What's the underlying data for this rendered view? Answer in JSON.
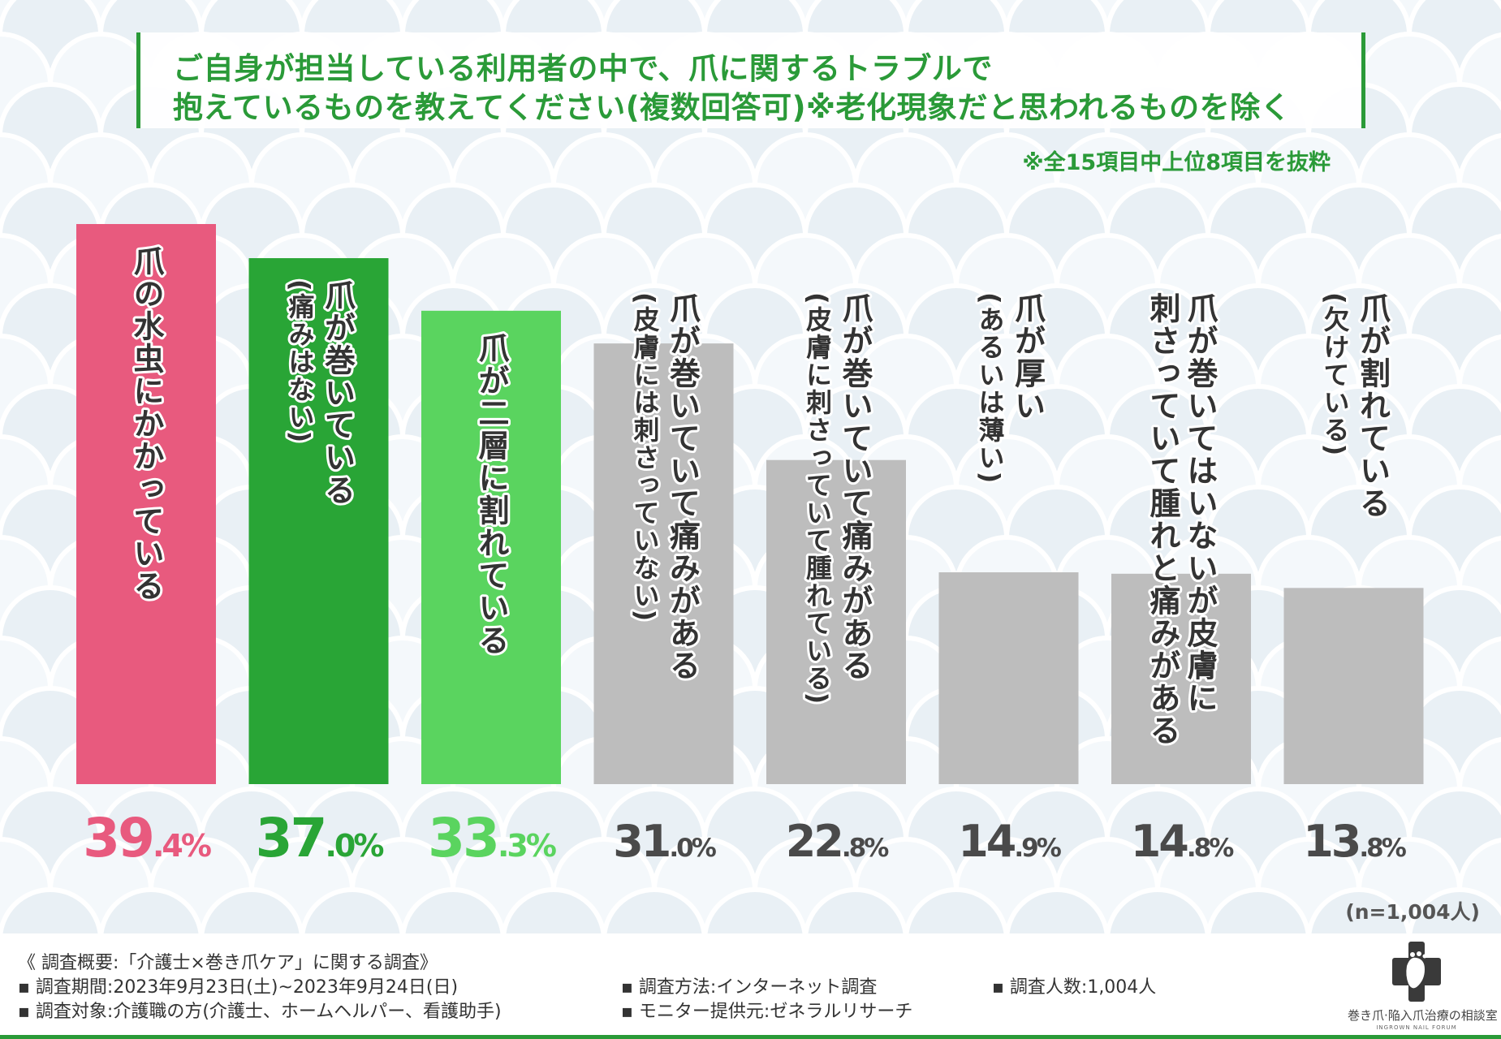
{
  "title": {
    "line1": "ご自身が担当している利用者の中で、爪に関するトラブルで",
    "line2": "抱えているものを教えてください(複数回答可)※老化現象だと思われるものを除く"
  },
  "note": "※全15項目中上位8項目を抜粋",
  "sample_size": "(n=1,004人)",
  "colors": {
    "accent": "#2a9a38",
    "pink": "#e85a7e",
    "green_dark": "#29a536",
    "green_light": "#5ad45f",
    "gray_bar": "#bdbdbd",
    "gray_text": "#4a4a4a"
  },
  "chart_data": {
    "type": "bar",
    "categories": [
      "爪の水虫にかかっている",
      "爪が巻いている(痛みはない)",
      "爪が二層に割れている",
      "爪が巻いていて痛みがある(皮膚には刺さっていない)",
      "爪が巻いていて痛みがある(皮膚に刺さっていて腫れている)",
      "爪が厚い(あるいは薄い)",
      "爪が巻いてはいないが皮膚に刺さっていて腫れと痛みがある",
      "爪が割れている(欠けている)"
    ],
    "values": [
      39.4,
      37.0,
      33.3,
      31.0,
      22.8,
      14.9,
      14.8,
      13.8
    ],
    "value_labels": [
      {
        "int": "39",
        "dec": ".4%"
      },
      {
        "int": "37",
        "dec": ".0%"
      },
      {
        "int": "33",
        "dec": ".3%"
      },
      {
        "int": "31",
        "dec": ".0%"
      },
      {
        "int": "22",
        "dec": ".8%"
      },
      {
        "int": "14",
        "dec": ".9%"
      },
      {
        "int": "14",
        "dec": ".8%"
      },
      {
        "int": "13",
        "dec": ".8%"
      }
    ],
    "bar_labels": [
      [
        {
          "text": "爪の水虫にかかっている",
          "paren": false
        }
      ],
      [
        {
          "text": "爪が巻いている",
          "paren": false
        },
        {
          "text": "(痛みはない)",
          "paren": true
        }
      ],
      [
        {
          "text": "爪が二層に割れている",
          "paren": false
        }
      ],
      [
        {
          "text": "爪が巻いていて痛みがある",
          "paren": false
        },
        {
          "text": "(皮膚には刺さっていない)",
          "paren": true
        }
      ],
      [
        {
          "text": "爪が巻いていて痛みがある",
          "paren": false
        },
        {
          "text": "(皮膚に刺さっていて腫れている)",
          "paren": true
        }
      ],
      [
        {
          "text": "爪が厚い",
          "paren": false
        },
        {
          "text": "(あるいは薄い)",
          "paren": true
        }
      ],
      [
        {
          "text": "爪が巻いてはいないが皮膚に",
          "paren": false
        },
        {
          "text": "刺さっていて腫れと痛みがある",
          "paren": false
        }
      ],
      [
        {
          "text": "爪が割れている",
          "paren": false
        },
        {
          "text": "(欠けている)",
          "paren": true
        }
      ]
    ],
    "bar_colors": [
      "#e85a7e",
      "#29a536",
      "#5ad45f",
      "#bdbdbd",
      "#bdbdbd",
      "#bdbdbd",
      "#bdbdbd",
      "#bdbdbd"
    ],
    "value_colors": [
      "#e85a7e",
      "#29a536",
      "#5ad45f",
      "#4a4a4a",
      "#4a4a4a",
      "#4a4a4a",
      "#4a4a4a",
      "#4a4a4a"
    ],
    "ylim": [
      0,
      39.4
    ],
    "grid": false,
    "legend": "none"
  },
  "footer": {
    "summary": "《 調査概要:「介護士×巻き爪ケア」に関する調査》",
    "period": "▪ 調査期間:2023年9月23日(土)~2023年9月24日(日)",
    "target": "▪ 調査対象:介護職の方(介護士、ホームヘルパー、看護助手)",
    "method": "▪ 調査方法:インターネット調査",
    "provider": "▪ モニター提供元:ゼネラルリサーチ",
    "count": "▪ 調査人数:1,004人"
  },
  "logo": {
    "name": "巻き爪·陥入爪治療の相談室",
    "sub": "INGROWN NAIL FORUM",
    "icon": "foot-cross-icon"
  }
}
